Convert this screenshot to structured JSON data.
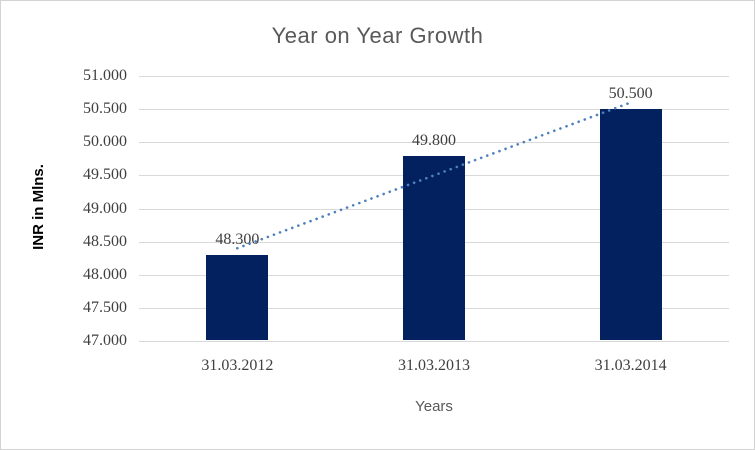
{
  "chart_data": {
    "type": "bar",
    "title": "Year on Year Growth",
    "xlabel": "Years",
    "ylabel": "INR in Mlns.",
    "categories": [
      "31.03.2012",
      "31.03.2013",
      "31.03.2014"
    ],
    "values": [
      48.3,
      49.8,
      50.5
    ],
    "value_labels": [
      "48.300",
      "49.800",
      "50.500"
    ],
    "ylim": [
      47.0,
      51.0
    ],
    "ytick_step": 0.5,
    "ytick_labels": [
      "47.000",
      "47.500",
      "48.000",
      "48.500",
      "49.000",
      "49.500",
      "50.000",
      "50.500",
      "51.000"
    ],
    "grid": true,
    "legend": "none",
    "trendline": {
      "style": "dotted",
      "start_value": 48.4,
      "end_value": 50.6
    }
  },
  "colors": {
    "bar": "#02215E",
    "trend": "#4E81BD",
    "grid": "#D9D9D9",
    "title_text": "#595959",
    "tick_text": "#3F3F3F",
    "border": "#D3D3D3"
  }
}
